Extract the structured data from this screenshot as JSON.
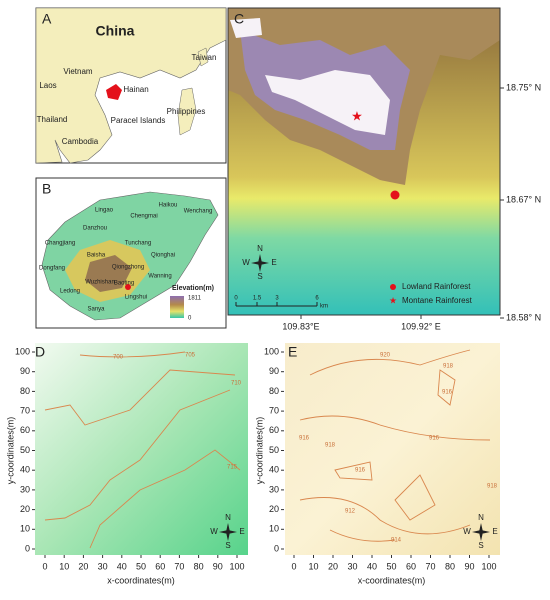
{
  "panels": {
    "a": {
      "label": "A",
      "title": "China",
      "places": [
        "Vietnam",
        "Laos",
        "Thailand",
        "Cambodia",
        "Hainan",
        "Taiwan",
        "Philippines",
        "Paracel Islands"
      ]
    },
    "b": {
      "label": "B",
      "places": [
        "Lingao",
        "Haikou",
        "Wenchang",
        "Chengmai",
        "Danzhou",
        "Tunchang",
        "Qionghai",
        "Changjiang",
        "Baisha",
        "Qiongzhong",
        "Wanning",
        "Dongfang",
        "Ledong",
        "Wuzhishan",
        "Baoting",
        "Lingshui",
        "Sanya"
      ],
      "legend": {
        "title": "Elevation(m)",
        "max": "1811",
        "min": "0"
      }
    },
    "c": {
      "label": "C",
      "lat_labels": [
        "18.75° N",
        "18.67° N",
        "18.58° N"
      ],
      "lon_labels": [
        "109.83°E",
        "109.92° E"
      ],
      "scale": {
        "ticks": [
          "0",
          "1.5",
          "3",
          "6"
        ],
        "unit": "km"
      },
      "compass": [
        "N",
        "E",
        "S",
        "W"
      ],
      "legend": [
        "Lowland Rainforest",
        "Montane Rainforest"
      ]
    },
    "d": {
      "label": "D",
      "xlabel": "x-coordinates(m)",
      "ylabel": "y-coordinates(m)",
      "xticks": [
        0,
        10,
        20,
        30,
        40,
        50,
        60,
        70,
        80,
        90,
        100
      ],
      "yticks": [
        0,
        10,
        20,
        30,
        40,
        50,
        60,
        70,
        80,
        90,
        100
      ],
      "contour_labels": [
        "700",
        "705",
        "710",
        "715"
      ],
      "compass": [
        "N",
        "E",
        "S",
        "W"
      ]
    },
    "e": {
      "label": "E",
      "xlabel": "x-coordinates(m)",
      "ylabel": "y-coordinates(m)",
      "xticks": [
        0,
        10,
        20,
        30,
        40,
        50,
        60,
        70,
        80,
        90,
        100
      ],
      "yticks": [
        0,
        10,
        20,
        30,
        40,
        50,
        60,
        70,
        80,
        90,
        100
      ],
      "contour_labels": [
        "920",
        "918",
        "916",
        "916",
        "918",
        "916",
        "918",
        "914",
        "912",
        "916"
      ],
      "compass": [
        "N",
        "E",
        "S",
        "W"
      ]
    }
  }
}
